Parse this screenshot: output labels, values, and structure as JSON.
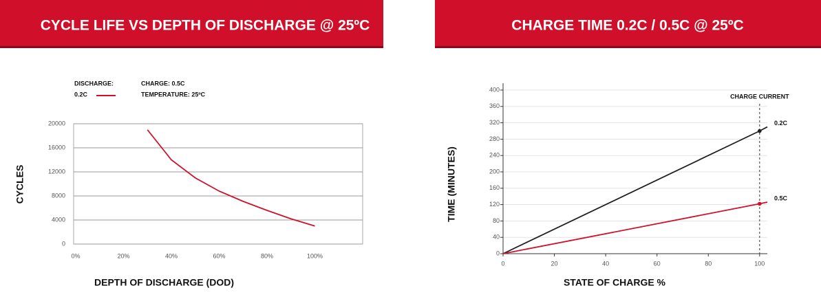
{
  "chart_data": [
    {
      "type": "line",
      "title": "CYCLE LIFE VS DEPTH OF DISCHARGE @ 25ºC",
      "legend_title": "DISCHARGE:",
      "annotations": [
        "CHARGE: 0.5C",
        "TEMPERATURE: 25ºC"
      ],
      "legend": "top-left",
      "x_label": "DEPTH OF DISCHARGE (DOD)",
      "y_label": "CYCLES",
      "x": [
        30,
        40,
        50,
        60,
        70,
        80,
        90,
        100
      ],
      "series": [
        {
          "name": "0.2C",
          "color": "#d0102a",
          "values": [
            19000,
            14000,
            11000,
            8800,
            7100,
            5600,
            4200,
            3000
          ]
        }
      ],
      "xlim": [
        0,
        120
      ],
      "xticks": [
        {
          "value": 0,
          "label": "0%"
        },
        {
          "value": 20,
          "label": "20%"
        },
        {
          "value": 40,
          "label": "40%"
        },
        {
          "value": 60,
          "label": "60%"
        },
        {
          "value": 80,
          "label": "80%"
        },
        {
          "value": 100,
          "label": "100%"
        }
      ],
      "ylim": [
        0,
        20000
      ],
      "yticks": [
        0,
        4000,
        8000,
        12000,
        16000,
        20000
      ],
      "grid": true
    },
    {
      "type": "line",
      "title": "CHARGE TIME 0.2C / 0.5C @ 25ºC",
      "legend": "line-end",
      "x_label": "STATE OF CHARGE %",
      "y_label": "TIME (MINUTES)",
      "vline": 100,
      "vline_label": "CHARGE CURRENT",
      "x": [
        0,
        100,
        103
      ],
      "series": [
        {
          "name": "0.2C",
          "color": "#231f20",
          "values": [
            0,
            300,
            310
          ]
        },
        {
          "name": "0.5C",
          "color": "#d0102a",
          "values": [
            0,
            122,
            126
          ]
        }
      ],
      "xlim": [
        0,
        103
      ],
      "xticks": [
        0,
        20,
        40,
        60,
        80,
        100
      ],
      "ylim": [
        0,
        400
      ],
      "yticks": [
        0,
        40,
        80,
        120,
        160,
        200,
        240,
        280,
        320,
        360,
        400
      ],
      "grid": true
    }
  ]
}
